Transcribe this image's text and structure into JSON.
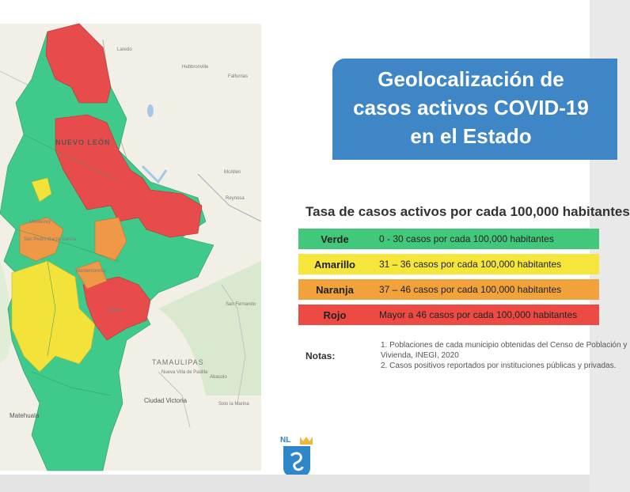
{
  "map": {
    "state_label": "NUEVO LEÓN",
    "tamaulipas_label": "TAMAULIPAS",
    "places": {
      "laredo": "Laredo",
      "monterrey": "Monterrey",
      "san_pedro": "San Pedro Garza García",
      "linares": "Linares",
      "montemorelos": "Montemorelos",
      "mcallen": "McAllen",
      "reynosa": "Reynosa",
      "matehuala": "Matehuala",
      "ciudad_victoria": "Ciudad Victoria",
      "san_fernando": "San Fernando",
      "abasolo": "Abasolo",
      "nueva_villa": "Nueva Villa de Padilla",
      "hebbronville": "Hebbronville",
      "falfurrias": "Falfurrias",
      "soto_la_marina": "Soto la Marina"
    },
    "region_colors": {
      "rojo": "#e84b4b",
      "naranja": "#ef9848",
      "amarillo": "#f2e23a",
      "verde": "#3fc98a"
    }
  },
  "title": "Geolocalización de\ncasos activos COVID-19\nen el Estado",
  "subtitle": "Tasa de casos activos por cada 100,000 habitantes",
  "legend": [
    {
      "name": "Verde",
      "desc": "0 - 30 casos por cada 100,000 habitantes",
      "color": "#41c87a"
    },
    {
      "name": "Amarillo",
      "desc": "31 – 36 casos por cada 100,000 habitantes",
      "color": "#f6e53a"
    },
    {
      "name": "Naranja",
      "desc": "37 – 46 casos por cada 100,000 habitantes",
      "color": "#f1a23a"
    },
    {
      "name": "Rojo",
      "desc": "Mayor a 46 casos por cada 100,000 habitantes",
      "color": "#ee4a44"
    }
  ],
  "notes": {
    "label": "Notas:",
    "lines": [
      "1. Poblaciones de cada municipio obtenidas del Censo de Población y",
      "Vivienda, INEGI, 2020",
      "2. Casos positivos reportados por instituciones públicas y privadas."
    ]
  },
  "logo": {
    "text": "NL",
    "icon": "nuevo-leon-shield-icon"
  },
  "colors": {
    "title_bg": "#3e86c6",
    "map_bg": "#f1efe6"
  }
}
